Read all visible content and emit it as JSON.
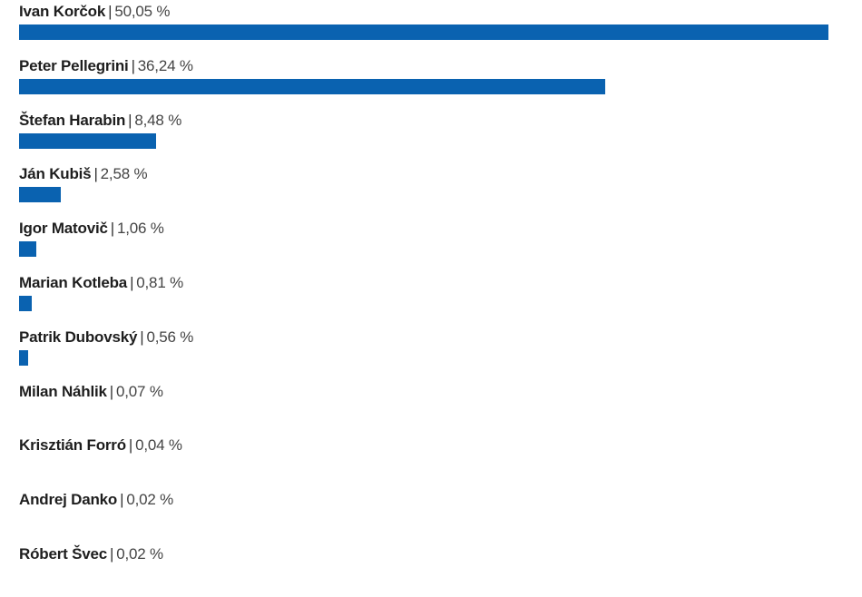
{
  "chart_data": {
    "type": "bar",
    "orientation": "horizontal",
    "title": "",
    "xlabel": "",
    "ylabel": "",
    "unit": "%",
    "bar_color": "#0a62b0",
    "grid": false,
    "legend": null,
    "categories": [
      "Ivan Korčok",
      "Peter Pellegrini",
      "Štefan Harabin",
      "Ján Kubiš",
      "Igor Matovič",
      "Marian Kotleba",
      "Patrik Dubovský",
      "Milan Náhlik",
      "Krisztián Forró",
      "Andrej Danko",
      "Róbert Švec"
    ],
    "values": [
      50.05,
      36.24,
      8.48,
      2.58,
      1.06,
      0.81,
      0.56,
      0.07,
      0.04,
      0.02,
      0.02
    ],
    "labels": [
      "50,05 %",
      "36,24 %",
      "8,48 %",
      "2,58 %",
      "1,06 %",
      "0,81 %",
      "0,56 %",
      "0,07 %",
      "0,04 %",
      "0,02 %",
      "0,02 %"
    ],
    "separator": "|"
  }
}
